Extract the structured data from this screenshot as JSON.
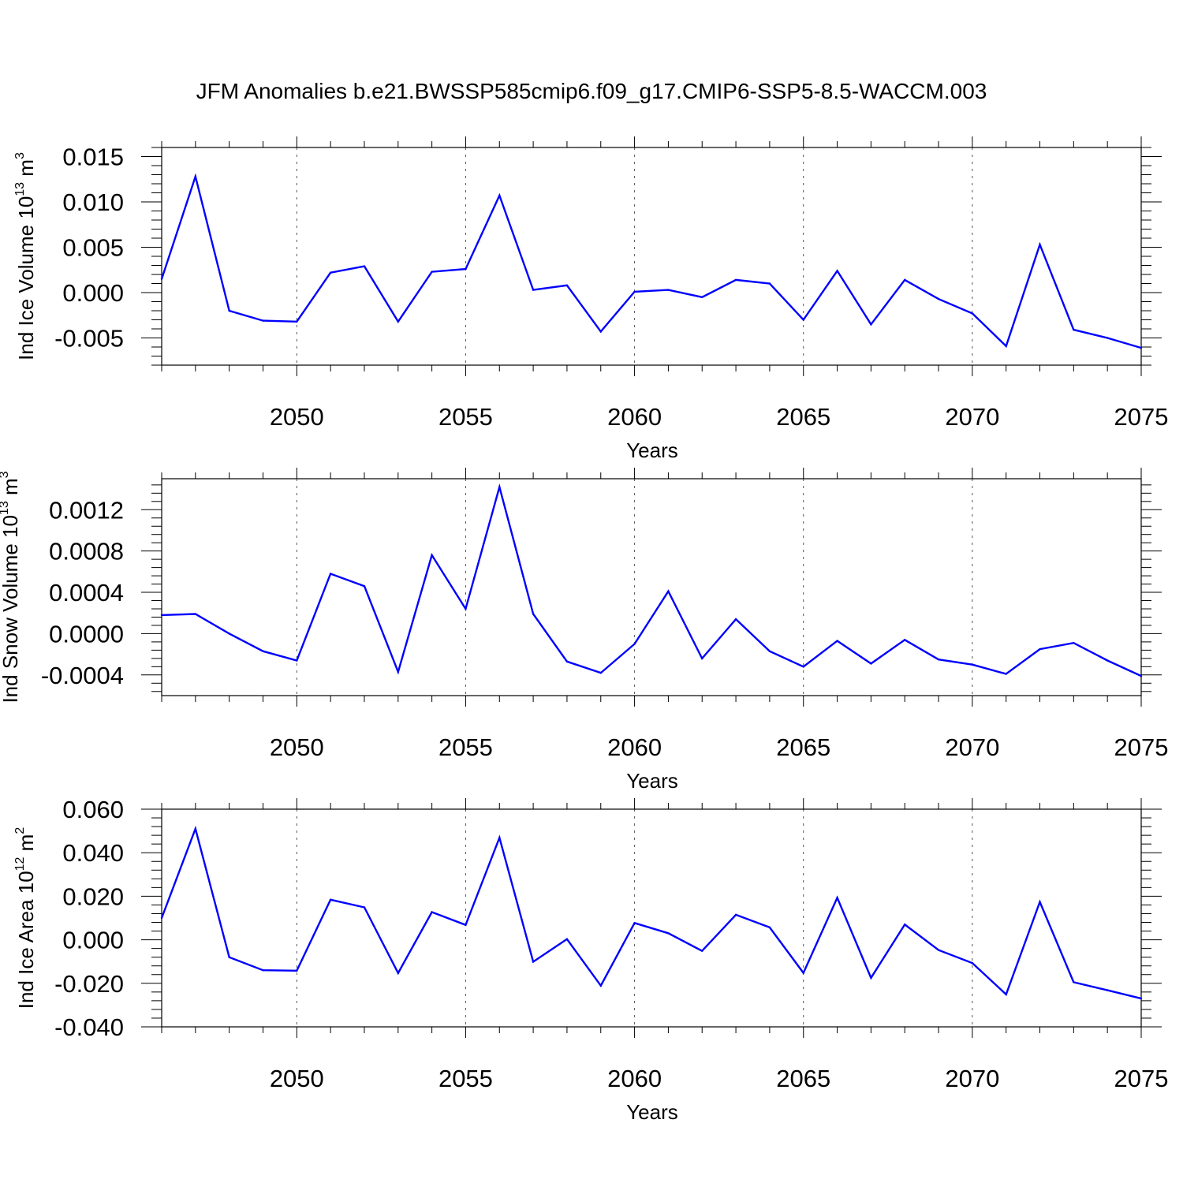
{
  "title": "JFM Anomalies b.e21.BWSSP585cmip6.f09_g17.CMIP6-SSP5-8.5-WACCM.003",
  "line_color": "#0000ff",
  "chart_data": [
    {
      "type": "line",
      "ylabel": {
        "main": "Ind Ice Volume 10",
        "exp": "13",
        "unit": " m",
        "unit_exp": "3"
      },
      "xlabel": "Years",
      "xlim": [
        2046,
        2075
      ],
      "ylim": [
        -0.008,
        0.016
      ],
      "xticks": [
        2050,
        2055,
        2060,
        2065,
        2070,
        2075
      ],
      "yticks": [
        -0.005,
        0.0,
        0.005,
        0.01,
        0.015
      ],
      "ytick_labels": [
        "-0.005",
        "0.000",
        "0.005",
        "0.010",
        "0.015"
      ],
      "x": [
        2046,
        2047,
        2048,
        2049,
        2050,
        2051,
        2052,
        2053,
        2054,
        2055,
        2056,
        2057,
        2058,
        2059,
        2060,
        2061,
        2062,
        2063,
        2064,
        2065,
        2066,
        2067,
        2068,
        2069,
        2070,
        2071,
        2072,
        2073,
        2074,
        2075
      ],
      "y": [
        0.0015,
        0.0128,
        -0.002,
        -0.0031,
        -0.0032,
        0.0022,
        0.0029,
        -0.0032,
        0.0023,
        0.0026,
        0.0107,
        0.0003,
        0.0008,
        -0.0043,
        0.0001,
        0.0003,
        -0.0005,
        0.0014,
        0.001,
        -0.003,
        0.0024,
        -0.0035,
        0.0014,
        -0.0007,
        -0.0023,
        -0.0059,
        0.0053,
        -0.0041,
        -0.005,
        -0.0061
      ]
    },
    {
      "type": "line",
      "ylabel": {
        "main": "Ind Snow Volume 10",
        "exp": "13",
        "unit": " m",
        "unit_exp": "3"
      },
      "xlabel": "Years",
      "xlim": [
        2046,
        2075
      ],
      "ylim": [
        -0.0006,
        0.0015
      ],
      "xticks": [
        2050,
        2055,
        2060,
        2065,
        2070,
        2075
      ],
      "yticks": [
        -0.0004,
        0.0,
        0.0004,
        0.0008,
        0.0012
      ],
      "ytick_labels": [
        "-0.0004",
        "0.0000",
        "0.0004",
        "0.0008",
        "0.0012"
      ],
      "x": [
        2046,
        2047,
        2048,
        2049,
        2050,
        2051,
        2052,
        2053,
        2054,
        2055,
        2056,
        2057,
        2058,
        2059,
        2060,
        2061,
        2062,
        2063,
        2064,
        2065,
        2066,
        2067,
        2068,
        2069,
        2070,
        2071,
        2072,
        2073,
        2074,
        2075
      ],
      "y": [
        0.00018,
        0.00019,
        0.0,
        -0.00017,
        -0.00026,
        0.00058,
        0.00046,
        -0.00037,
        0.00076,
        0.00024,
        0.00142,
        0.00019,
        -0.00027,
        -0.00038,
        -0.0001,
        0.00041,
        -0.00024,
        0.00014,
        -0.00017,
        -0.00032,
        -7e-05,
        -0.00029,
        -6e-05,
        -0.00025,
        -0.0003,
        -0.00039,
        -0.00015,
        -9e-05,
        -0.00026,
        -0.00041
      ]
    },
    {
      "type": "line",
      "ylabel": {
        "main": "Ind Ice Area 10",
        "exp": "12",
        "unit": " m",
        "unit_exp": "2"
      },
      "xlabel": "Years",
      "xlim": [
        2046,
        2075
      ],
      "ylim": [
        -0.04,
        0.06
      ],
      "xticks": [
        2050,
        2055,
        2060,
        2065,
        2070,
        2075
      ],
      "yticks": [
        -0.04,
        -0.02,
        0.0,
        0.02,
        0.04,
        0.06
      ],
      "ytick_labels": [
        "-0.040",
        "-0.020",
        "0.000",
        "0.020",
        "0.040",
        "0.060"
      ],
      "x": [
        2046,
        2047,
        2048,
        2049,
        2050,
        2051,
        2052,
        2053,
        2054,
        2055,
        2056,
        2057,
        2058,
        2059,
        2060,
        2061,
        2062,
        2063,
        2064,
        2065,
        2066,
        2067,
        2068,
        2069,
        2070,
        2071,
        2072,
        2073,
        2074,
        2075
      ],
      "y": [
        0.01,
        0.051,
        -0.008,
        -0.014,
        -0.0142,
        0.0184,
        0.0149,
        -0.0153,
        0.0127,
        0.0068,
        0.0469,
        -0.0101,
        0.0003,
        -0.0211,
        0.0077,
        0.003,
        -0.0051,
        0.0115,
        0.0057,
        -0.0152,
        0.0193,
        -0.0175,
        0.007,
        -0.0047,
        -0.0107,
        -0.0251,
        0.0174,
        -0.0195,
        -0.0232,
        -0.027
      ]
    }
  ]
}
